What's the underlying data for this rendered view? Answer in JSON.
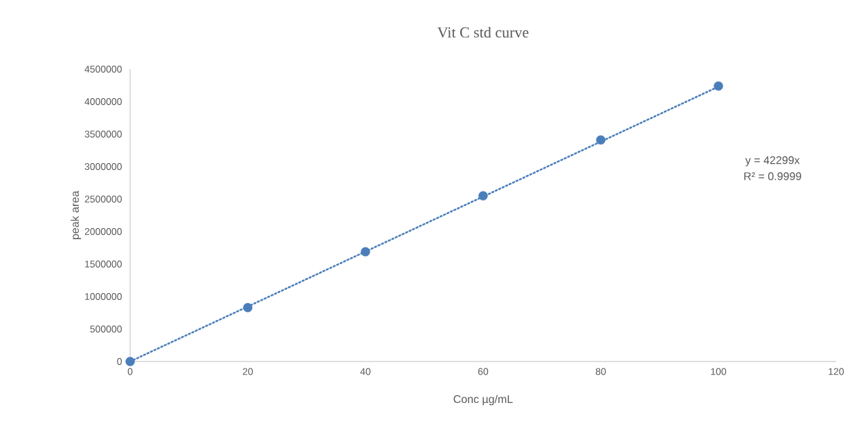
{
  "chart_data": {
    "type": "scatter",
    "title": "Vit C std curve",
    "xlabel": "Conc µg/mL",
    "ylabel": "peak area",
    "xlim": [
      0,
      120
    ],
    "xticks": [
      0,
      20,
      40,
      60,
      80,
      100,
      120
    ],
    "ylim": [
      0,
      4500000
    ],
    "yticks": [
      0,
      500000,
      1000000,
      1500000,
      2000000,
      2500000,
      3000000,
      3500000,
      4000000,
      4500000
    ],
    "series": [
      {
        "color": "#4a7ebb",
        "marker": "circle",
        "x": [
          0,
          20,
          40,
          60,
          80,
          100
        ],
        "values": [
          0,
          830000,
          1690000,
          2550000,
          3410000,
          4240000
        ]
      },
      {
        "type": "line",
        "color": "#4a7ebb",
        "marker": "none",
        "line_style": "dotted",
        "x": [
          0,
          100
        ],
        "values": [
          0,
          4230000
        ]
      }
    ],
    "annotations": [
      "y = 42299x",
      "R² = 0.9999"
    ]
  }
}
